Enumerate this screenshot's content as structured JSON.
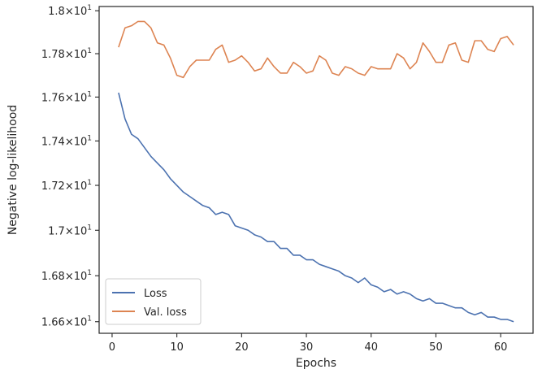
{
  "chart_data": {
    "type": "line",
    "xlabel": "Epochs",
    "ylabel": "Negative log-likelihood",
    "xlim": [
      -2.0,
      65.0
    ],
    "ylim": [
      16.55,
      18.02
    ],
    "yscale": "log",
    "grid": false,
    "legend_position": "lower-left",
    "x_ticks": [
      0,
      10,
      20,
      30,
      40,
      50,
      60
    ],
    "x_tick_labels": [
      "0",
      "10",
      "20",
      "30",
      "40",
      "50",
      "60"
    ],
    "y_ticks": [
      16.6,
      16.8,
      17.0,
      17.2,
      17.4,
      17.6,
      17.8,
      18.0
    ],
    "y_tick_labels": [
      {
        "mantissa": "1.66",
        "base": "10",
        "exp": "1"
      },
      {
        "mantissa": "1.68",
        "base": "10",
        "exp": "1"
      },
      {
        "mantissa": "1.7",
        "base": "10",
        "exp": "1"
      },
      {
        "mantissa": "1.72",
        "base": "10",
        "exp": "1"
      },
      {
        "mantissa": "1.74",
        "base": "10",
        "exp": "1"
      },
      {
        "mantissa": "1.76",
        "base": "10",
        "exp": "1"
      },
      {
        "mantissa": "1.78",
        "base": "10",
        "exp": "1"
      },
      {
        "mantissa": "1.8",
        "base": "10",
        "exp": "1"
      }
    ],
    "x": [
      1,
      2,
      3,
      4,
      5,
      6,
      7,
      8,
      9,
      10,
      11,
      12,
      13,
      14,
      15,
      16,
      17,
      18,
      19,
      20,
      21,
      22,
      23,
      24,
      25,
      26,
      27,
      28,
      29,
      30,
      31,
      32,
      33,
      34,
      35,
      36,
      37,
      38,
      39,
      40,
      41,
      42,
      43,
      44,
      45,
      46,
      47,
      48,
      49,
      50,
      51,
      52,
      53,
      54,
      55,
      56,
      57,
      58,
      59,
      60,
      61,
      62
    ],
    "series": [
      {
        "name": "Loss",
        "color": "#4c72b0",
        "values": [
          17.62,
          17.5,
          17.43,
          17.41,
          17.37,
          17.33,
          17.3,
          17.27,
          17.23,
          17.2,
          17.17,
          17.15,
          17.13,
          17.11,
          17.1,
          17.07,
          17.08,
          17.07,
          17.02,
          17.01,
          17.0,
          16.98,
          16.97,
          16.95,
          16.95,
          16.92,
          16.92,
          16.89,
          16.89,
          16.87,
          16.87,
          16.85,
          16.84,
          16.83,
          16.82,
          16.8,
          16.79,
          16.77,
          16.79,
          16.76,
          16.75,
          16.73,
          16.74,
          16.72,
          16.73,
          16.72,
          16.7,
          16.69,
          16.7,
          16.68,
          16.68,
          16.67,
          16.66,
          16.66,
          16.64,
          16.63,
          16.64,
          16.62,
          16.62,
          16.61,
          16.61,
          16.6
        ]
      },
      {
        "name": "Val. loss",
        "color": "#dd8452",
        "values": [
          17.83,
          17.92,
          17.93,
          17.95,
          17.95,
          17.92,
          17.85,
          17.84,
          17.78,
          17.7,
          17.69,
          17.74,
          17.77,
          17.77,
          17.77,
          17.82,
          17.84,
          17.76,
          17.77,
          17.79,
          17.76,
          17.72,
          17.73,
          17.78,
          17.74,
          17.71,
          17.71,
          17.76,
          17.74,
          17.71,
          17.72,
          17.79,
          17.77,
          17.71,
          17.7,
          17.74,
          17.73,
          17.71,
          17.7,
          17.74,
          17.73,
          17.73,
          17.73,
          17.8,
          17.78,
          17.73,
          17.76,
          17.85,
          17.81,
          17.76,
          17.76,
          17.84,
          17.85,
          17.77,
          17.76,
          17.86,
          17.86,
          17.82,
          17.81,
          17.87,
          17.88,
          17.84
        ]
      }
    ]
  }
}
